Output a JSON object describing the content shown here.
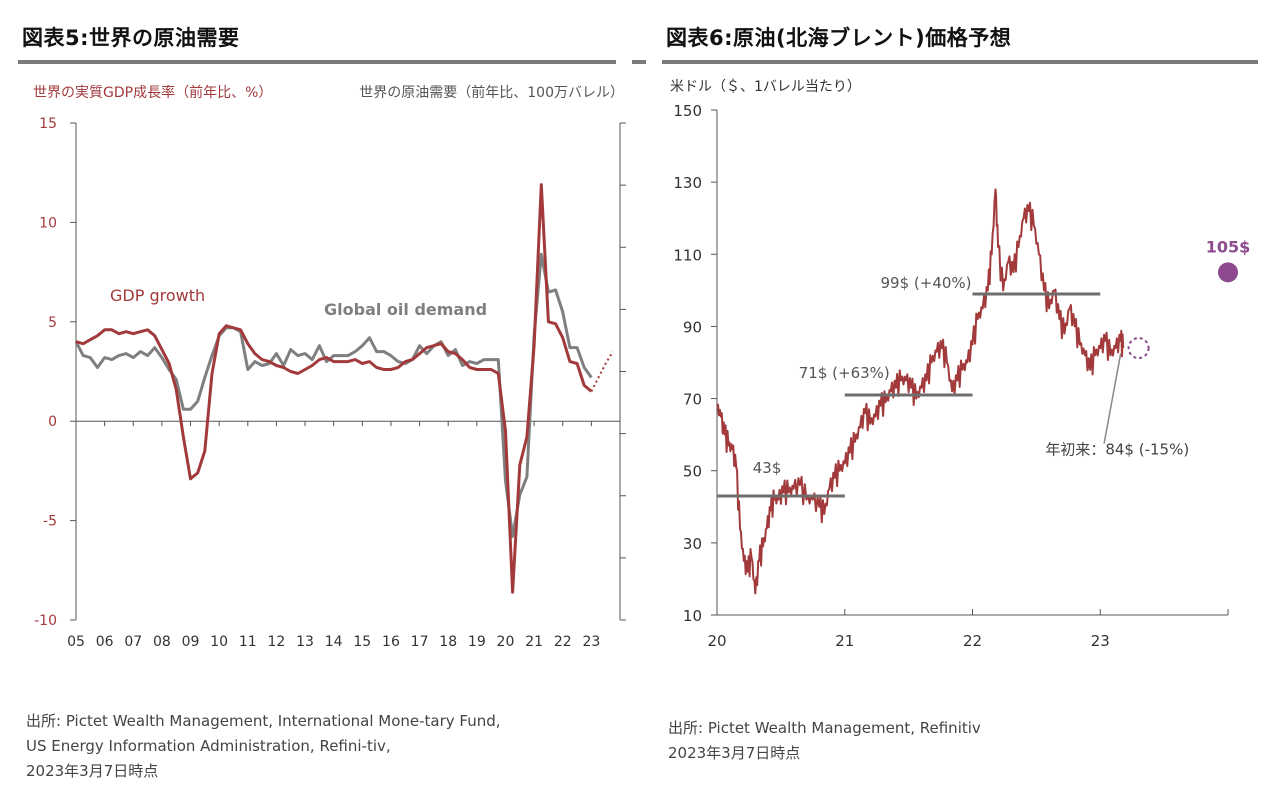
{
  "left_panel": {
    "title": "図表5:世界の原油需要",
    "source_lines": [
      "出所: Pictet Wealth Management, International Mone-tary Fund,",
      "US Energy Information Administration, Refini-tiv,",
      "2023年3月7日時点"
    ]
  },
  "right_panel": {
    "title": "図表6:原油(北海ブレント)価格予想",
    "source_lines": [
      "出所: Pictet Wealth Management, Refinitiv",
      "2023年3月7日時点"
    ]
  },
  "chart_data": [
    {
      "type": "line",
      "left_axis_title": "世界の実質GDP成長率（前年比、%）",
      "right_axis_title": "世界の原油需要（前年比、100万バレル）",
      "x_tick_labels": [
        "05",
        "06",
        "07",
        "08",
        "09",
        "10",
        "11",
        "12",
        "13",
        "14",
        "15",
        "16",
        "17",
        "18",
        "19",
        "20",
        "21",
        "22",
        "23"
      ],
      "x_range": [
        2005,
        2024.0
      ],
      "ylim": [
        -10,
        15
      ],
      "y_ticks": [
        -10,
        -5,
        0,
        5,
        10,
        15
      ],
      "y_tick_labels": [
        "-10",
        "-5",
        "0",
        "5",
        "10",
        "15"
      ],
      "grid": false,
      "colors": {
        "gdp": "#a23a3c",
        "oil": "#7f7f7f"
      },
      "series": [
        {
          "name": "GDP growth",
          "axis": "left",
          "points": [
            [
              2005.0,
              4.0
            ],
            [
              2005.25,
              3.9
            ],
            [
              2005.5,
              4.1
            ],
            [
              2005.75,
              4.3
            ],
            [
              2006.0,
              4.6
            ],
            [
              2006.25,
              4.6
            ],
            [
              2006.5,
              4.4
            ],
            [
              2006.75,
              4.5
            ],
            [
              2007.0,
              4.4
            ],
            [
              2007.25,
              4.5
            ],
            [
              2007.5,
              4.6
            ],
            [
              2007.75,
              4.3
            ],
            [
              2008.0,
              3.6
            ],
            [
              2008.25,
              2.9
            ],
            [
              2008.5,
              1.6
            ],
            [
              2008.75,
              -0.8
            ],
            [
              2009.0,
              -2.9
            ],
            [
              2009.25,
              -2.6
            ],
            [
              2009.5,
              -1.5
            ],
            [
              2009.75,
              2.4
            ],
            [
              2010.0,
              4.4
            ],
            [
              2010.25,
              4.8
            ],
            [
              2010.5,
              4.7
            ],
            [
              2010.75,
              4.6
            ],
            [
              2011.0,
              3.9
            ],
            [
              2011.25,
              3.4
            ],
            [
              2011.5,
              3.1
            ],
            [
              2011.75,
              3.0
            ],
            [
              2012.0,
              2.8
            ],
            [
              2012.25,
              2.7
            ],
            [
              2012.5,
              2.5
            ],
            [
              2012.75,
              2.4
            ],
            [
              2013.0,
              2.6
            ],
            [
              2013.25,
              2.8
            ],
            [
              2013.5,
              3.1
            ],
            [
              2013.75,
              3.2
            ],
            [
              2014.0,
              3.0
            ],
            [
              2014.25,
              3.0
            ],
            [
              2014.5,
              3.0
            ],
            [
              2014.75,
              3.1
            ],
            [
              2015.0,
              2.9
            ],
            [
              2015.25,
              3.0
            ],
            [
              2015.5,
              2.7
            ],
            [
              2015.75,
              2.6
            ],
            [
              2016.0,
              2.6
            ],
            [
              2016.25,
              2.7
            ],
            [
              2016.5,
              3.0
            ],
            [
              2016.75,
              3.1
            ],
            [
              2017.0,
              3.4
            ],
            [
              2017.25,
              3.7
            ],
            [
              2017.5,
              3.8
            ],
            [
              2017.75,
              3.9
            ],
            [
              2018.0,
              3.5
            ],
            [
              2018.25,
              3.4
            ],
            [
              2018.5,
              3.1
            ],
            [
              2018.75,
              2.7
            ],
            [
              2019.0,
              2.6
            ],
            [
              2019.25,
              2.6
            ],
            [
              2019.5,
              2.6
            ],
            [
              2019.75,
              2.4
            ],
            [
              2020.0,
              -0.5
            ],
            [
              2020.25,
              -8.6
            ],
            [
              2020.5,
              -2.2
            ],
            [
              2020.75,
              -0.8
            ],
            [
              2021.0,
              3.8
            ],
            [
              2021.25,
              11.9
            ],
            [
              2021.5,
              5.0
            ],
            [
              2021.75,
              4.9
            ],
            [
              2022.0,
              4.2
            ],
            [
              2022.25,
              3.0
            ],
            [
              2022.5,
              2.9
            ],
            [
              2022.75,
              1.8
            ],
            [
              2023.0,
              1.5
            ]
          ]
        },
        {
          "name": "GDP forecast",
          "axis": "left",
          "dotted": true,
          "points": [
            [
              2023.0,
              1.5
            ],
            [
              2023.25,
              2.2
            ],
            [
              2023.5,
              2.9
            ],
            [
              2023.75,
              3.5
            ]
          ]
        },
        {
          "name": "Global oil demand",
          "axis": "left",
          "points": [
            [
              2005.0,
              4.0
            ],
            [
              2005.25,
              3.3
            ],
            [
              2005.5,
              3.2
            ],
            [
              2005.75,
              2.7
            ],
            [
              2006.0,
              3.2
            ],
            [
              2006.25,
              3.1
            ],
            [
              2006.5,
              3.3
            ],
            [
              2006.75,
              3.4
            ],
            [
              2007.0,
              3.2
            ],
            [
              2007.25,
              3.5
            ],
            [
              2007.5,
              3.3
            ],
            [
              2007.75,
              3.7
            ],
            [
              2008.0,
              3.2
            ],
            [
              2008.25,
              2.6
            ],
            [
              2008.5,
              2.1
            ],
            [
              2008.75,
              0.6
            ],
            [
              2009.0,
              0.6
            ],
            [
              2009.25,
              1.0
            ],
            [
              2009.5,
              2.2
            ],
            [
              2009.75,
              3.3
            ],
            [
              2010.0,
              4.3
            ],
            [
              2010.25,
              4.7
            ],
            [
              2010.5,
              4.7
            ],
            [
              2010.75,
              4.5
            ],
            [
              2011.0,
              2.6
            ],
            [
              2011.25,
              3.0
            ],
            [
              2011.5,
              2.8
            ],
            [
              2011.75,
              2.9
            ],
            [
              2012.0,
              3.4
            ],
            [
              2012.25,
              2.8
            ],
            [
              2012.5,
              3.6
            ],
            [
              2012.75,
              3.3
            ],
            [
              2013.0,
              3.4
            ],
            [
              2013.25,
              3.1
            ],
            [
              2013.5,
              3.8
            ],
            [
              2013.75,
              3.0
            ],
            [
              2014.0,
              3.3
            ],
            [
              2014.25,
              3.3
            ],
            [
              2014.5,
              3.3
            ],
            [
              2014.75,
              3.5
            ],
            [
              2015.0,
              3.8
            ],
            [
              2015.25,
              4.2
            ],
            [
              2015.5,
              3.5
            ],
            [
              2015.75,
              3.5
            ],
            [
              2016.0,
              3.3
            ],
            [
              2016.25,
              3.0
            ],
            [
              2016.5,
              2.9
            ],
            [
              2016.75,
              3.1
            ],
            [
              2017.0,
              3.8
            ],
            [
              2017.25,
              3.4
            ],
            [
              2017.5,
              3.8
            ],
            [
              2017.75,
              4.0
            ],
            [
              2018.0,
              3.3
            ],
            [
              2018.25,
              3.6
            ],
            [
              2018.5,
              2.8
            ],
            [
              2018.75,
              3.0
            ],
            [
              2019.0,
              2.9
            ],
            [
              2019.25,
              3.1
            ],
            [
              2019.5,
              3.1
            ],
            [
              2019.75,
              3.1
            ],
            [
              2020.0,
              -3.0
            ],
            [
              2020.25,
              -5.8
            ],
            [
              2020.5,
              -3.7
            ],
            [
              2020.75,
              -2.8
            ],
            [
              2021.0,
              4.3
            ],
            [
              2021.25,
              8.4
            ],
            [
              2021.5,
              6.5
            ],
            [
              2021.75,
              6.6
            ],
            [
              2022.0,
              5.5
            ],
            [
              2022.25,
              3.7
            ],
            [
              2022.5,
              3.7
            ],
            [
              2022.75,
              2.7
            ],
            [
              2023.0,
              2.2
            ]
          ]
        }
      ],
      "annotations": [
        "GDP growth",
        "Global oil demand"
      ]
    },
    {
      "type": "line",
      "y_axis_title": "米ドル（＄、1バレル当たり）",
      "x_tick_labels": [
        "20",
        "21",
        "22",
        "23"
      ],
      "x_ticks": [
        2020,
        2021,
        2022,
        2023
      ],
      "x_range": [
        2020,
        2024
      ],
      "ylim": [
        10,
        150
      ],
      "y_ticks": [
        10,
        30,
        50,
        70,
        90,
        110,
        130,
        150
      ],
      "y_tick_labels": [
        "10",
        "30",
        "50",
        "70",
        "90",
        "110",
        "130",
        "150"
      ],
      "grid": false,
      "colors": {
        "price": "#a23a3c",
        "avg": "#6d6d6d",
        "forecast": "#8e4a8e"
      },
      "series": [
        {
          "name": "Brent",
          "points": [
            [
              2020.0,
              68
            ],
            [
              2020.03,
              65
            ],
            [
              2020.06,
              60
            ],
            [
              2020.09,
              57
            ],
            [
              2020.12,
              56
            ],
            [
              2020.15,
              51
            ],
            [
              2020.18,
              34
            ],
            [
              2020.21,
              25
            ],
            [
              2020.24,
              22
            ],
            [
              2020.27,
              26
            ],
            [
              2020.3,
              16
            ],
            [
              2020.33,
              25
            ],
            [
              2020.36,
              29
            ],
            [
              2020.39,
              34
            ],
            [
              2020.42,
              39
            ],
            [
              2020.45,
              42
            ],
            [
              2020.48,
              42
            ],
            [
              2020.52,
              44
            ],
            [
              2020.56,
              44
            ],
            [
              2020.6,
              45
            ],
            [
              2020.65,
              46
            ],
            [
              2020.7,
              42
            ],
            [
              2020.75,
              42
            ],
            [
              2020.8,
              40
            ],
            [
              2020.84,
              38
            ],
            [
              2020.88,
              45
            ],
            [
              2020.92,
              48
            ],
            [
              2020.96,
              50
            ],
            [
              2021.0,
              52
            ],
            [
              2021.04,
              55
            ],
            [
              2021.08,
              58
            ],
            [
              2021.12,
              62
            ],
            [
              2021.16,
              66
            ],
            [
              2021.2,
              63
            ],
            [
              2021.24,
              65
            ],
            [
              2021.28,
              68
            ],
            [
              2021.32,
              69
            ],
            [
              2021.36,
              72
            ],
            [
              2021.4,
              73
            ],
            [
              2021.44,
              75
            ],
            [
              2021.48,
              75
            ],
            [
              2021.52,
              73
            ],
            [
              2021.56,
              70
            ],
            [
              2021.6,
              73
            ],
            [
              2021.64,
              75
            ],
            [
              2021.68,
              80
            ],
            [
              2021.72,
              83
            ],
            [
              2021.76,
              84
            ],
            [
              2021.8,
              80
            ],
            [
              2021.84,
              72
            ],
            [
              2021.88,
              75
            ],
            [
              2021.92,
              78
            ],
            [
              2021.96,
              80
            ],
            [
              2022.0,
              85
            ],
            [
              2022.04,
              92
            ],
            [
              2022.08,
              95
            ],
            [
              2022.12,
              100
            ],
            [
              2022.15,
              110
            ],
            [
              2022.18,
              128
            ],
            [
              2022.2,
              112
            ],
            [
              2022.24,
              100
            ],
            [
              2022.28,
              108
            ],
            [
              2022.32,
              105
            ],
            [
              2022.36,
              112
            ],
            [
              2022.4,
              120
            ],
            [
              2022.44,
              122
            ],
            [
              2022.48,
              118
            ],
            [
              2022.52,
              110
            ],
            [
              2022.56,
              100
            ],
            [
              2022.6,
              95
            ],
            [
              2022.64,
              100
            ],
            [
              2022.68,
              92
            ],
            [
              2022.72,
              88
            ],
            [
              2022.76,
              95
            ],
            [
              2022.8,
              90
            ],
            [
              2022.84,
              85
            ],
            [
              2022.88,
              82
            ],
            [
              2022.92,
              78
            ],
            [
              2022.96,
              82
            ],
            [
              2023.0,
              84
            ],
            [
              2023.04,
              86
            ],
            [
              2023.08,
              82
            ],
            [
              2023.12,
              84
            ],
            [
              2023.16,
              86
            ],
            [
              2023.18,
              84
            ]
          ]
        },
        {
          "name": "Annual average",
          "segments": [
            {
              "from": 2020.0,
              "to": 2021.0,
              "value": 43,
              "label": "43$"
            },
            {
              "from": 2021.0,
              "to": 2022.0,
              "value": 71,
              "label": "71$ (+63%)"
            },
            {
              "from": 2022.0,
              "to": 2023.0,
              "value": 99,
              "label": "99$ (+40%)"
            }
          ]
        },
        {
          "name": "Forecast",
          "points": [
            {
              "x": 2024.0,
              "y": 105,
              "label": "105$"
            }
          ]
        }
      ],
      "annotations": [
        {
          "text": "年初来：84$ (-15%)",
          "x": 2023.18,
          "y": 84
        }
      ]
    }
  ]
}
